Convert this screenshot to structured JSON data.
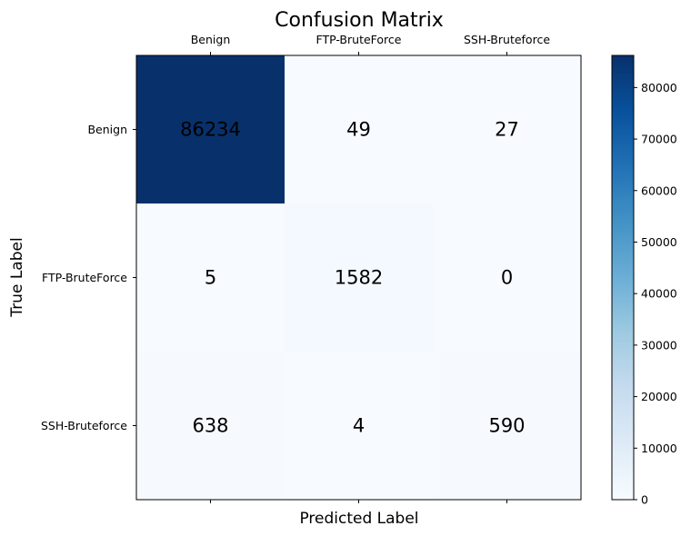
{
  "chart_data": {
    "type": "heatmap",
    "title": "Confusion Matrix",
    "xlabel": "Predicted Label",
    "ylabel": "True Label",
    "x_categories": [
      "Benign",
      "FTP-BruteForce",
      "SSH-Bruteforce"
    ],
    "y_categories": [
      "Benign",
      "FTP-BruteForce",
      "SSH-Bruteforce"
    ],
    "values": [
      [
        86234,
        49,
        27
      ],
      [
        5,
        1582,
        0
      ],
      [
        638,
        4,
        590
      ]
    ],
    "colormap": "Blues",
    "color_range": [
      0,
      86234
    ],
    "colorbar_ticks": [
      "0",
      "10000",
      "20000",
      "30000",
      "40000",
      "50000",
      "60000",
      "70000",
      "80000"
    ],
    "x_ticks_position": "top",
    "colors": {
      "low": "#f7fbff",
      "high": "#08306b",
      "text": "#000000"
    }
  }
}
